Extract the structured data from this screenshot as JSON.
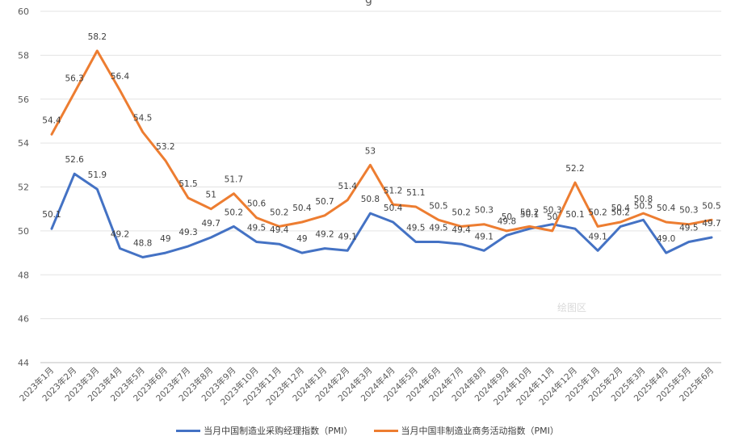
{
  "chart_data": {
    "type": "line",
    "title": "",
    "xlabel": "",
    "ylabel": "",
    "ylim": [
      44,
      60
    ],
    "yticks": [
      44,
      46,
      48,
      50,
      52,
      54,
      56,
      58,
      60
    ],
    "grid": true,
    "legend_position": "bottom",
    "categories": [
      "2023年1月",
      "2023年2月",
      "2023年3月",
      "2023年4月",
      "2023年5月",
      "2023年6月",
      "2023年7月",
      "2023年8月",
      "2023年9月",
      "2023年10月",
      "2023年11月",
      "2023年12月",
      "2024年1月",
      "2024年2月",
      "2024年3月",
      "2024年4月",
      "2024年5月",
      "2024年6月",
      "2024年7月",
      "2024年8月",
      "2024年9月",
      "2024年10月",
      "2024年11月",
      "2024年12月",
      "2025年1月",
      "2025年2月",
      "2025年3月",
      "2025年4月",
      "2025年5月",
      "2025年6月"
    ],
    "series": [
      {
        "name": "当月中国制造业采购经理指数（PMI）",
        "color": "#4472c4",
        "values": [
          50.1,
          52.6,
          51.9,
          49.2,
          48.8,
          49,
          49.3,
          49.7,
          50.2,
          49.5,
          49.4,
          49,
          49.2,
          49.1,
          50.8,
          50.4,
          49.5,
          49.5,
          49.4,
          49.1,
          49.8,
          50.1,
          50.3,
          50.1,
          49.1,
          50.2,
          50.5,
          49.0,
          49.5,
          49.7
        ],
        "labels": [
          "50.1",
          "52.6",
          "51.9",
          "49.2",
          "48.8",
          "49",
          "49.3",
          "49.7",
          "50.2",
          "49.5",
          "49.4",
          "49",
          "49.2",
          "49.1",
          "50.8",
          "50.4",
          "49.5",
          "49.5",
          "49.4",
          "49.1",
          "49.8",
          "50.1",
          "50.3",
          "50.1",
          "49.1",
          "50.2",
          "50.5",
          "49.0",
          "49.5",
          "49.7"
        ]
      },
      {
        "name": "当月中国非制造业商务活动指数（PMI）",
        "color": "#ed7d31",
        "values": [
          54.4,
          56.3,
          58.2,
          56.4,
          54.5,
          53.2,
          51.5,
          51,
          51.7,
          50.6,
          50.2,
          50.4,
          50.7,
          51.4,
          53,
          51.2,
          51.1,
          50.5,
          50.2,
          50.3,
          50,
          50.2,
          50,
          52.2,
          50.2,
          50.4,
          50.8,
          50.4,
          50.3,
          50.5
        ],
        "labels": [
          "54.4",
          "56.3",
          "58.2",
          "56.4",
          "54.5",
          "53.2",
          "51.5",
          "51",
          "51.7",
          "50.6",
          "50.2",
          "50.4",
          "50.7",
          "51.4",
          "53",
          "51.2",
          "51.1",
          "50.5",
          "50.2",
          "50.3",
          "50",
          "50.2",
          "50",
          "52.2",
          "50.2",
          "50.4",
          "50.8",
          "50.4",
          "50.3",
          "50.5"
        ]
      }
    ]
  },
  "watermark": "绘图区",
  "title_fragment": "g"
}
